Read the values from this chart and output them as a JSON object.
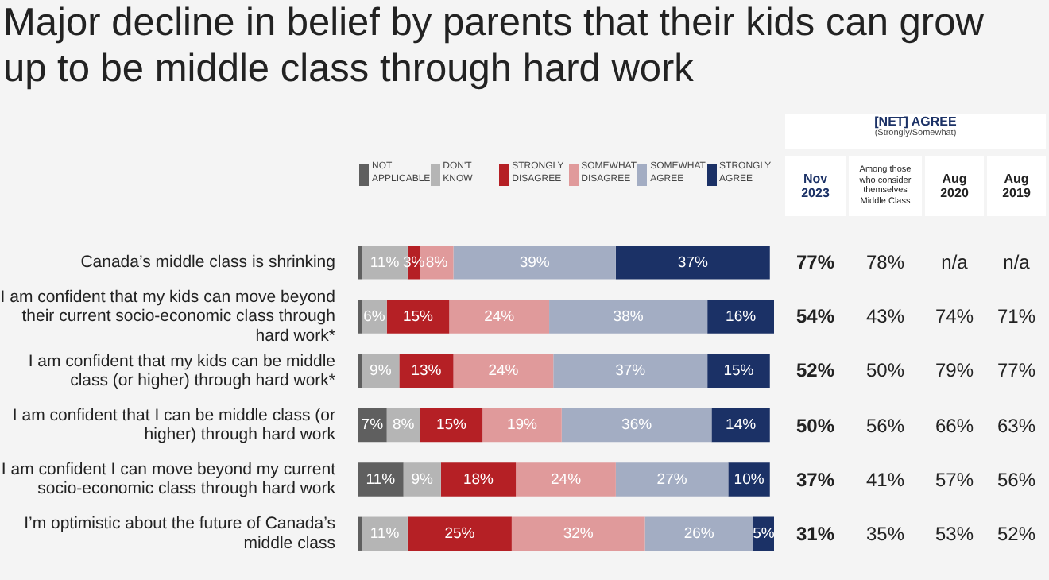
{
  "chart_data": [
    {
      "type": "bar",
      "title": "Major decline in belief by parents that their kids can grow up to be middle class through hard work",
      "orientation": "horizontal",
      "stacked": true,
      "legend": "top",
      "categories": [
        "Canada’s middle class is shrinking",
        "I am confident that my kids can move beyond their current socio-economic class through hard work*",
        "I am confident that my kids can be middle class (or higher) through hard work*",
        "I am confident that I can be middle class (or higher) through hard work",
        "I am confident I can move beyond my current socio-economic class through hard work",
        "I’m optimistic about the future of Canada’s middle class"
      ],
      "series": [
        {
          "name": "NOT APPLICABLE",
          "color": "#5f5f5f",
          "values": [
            1,
            1,
            1,
            7,
            11,
            1
          ],
          "value_labels": [
            null,
            null,
            null,
            "7%",
            "11%",
            null
          ]
        },
        {
          "name": "DON'T KNOW",
          "color": "#b5b5b5",
          "values": [
            11,
            6,
            9,
            8,
            9,
            11
          ],
          "value_labels": [
            "11%",
            "6%",
            "9%",
            "8%",
            "9%",
            "11%"
          ]
        },
        {
          "name": "STRONGLY DISAGREE",
          "color": "#b52025",
          "values": [
            3,
            15,
            13,
            15,
            18,
            25
          ],
          "value_labels": [
            "3%",
            "15%",
            "13%",
            "15%",
            "18%",
            "25%"
          ]
        },
        {
          "name": "SOMEWHAT DISAGREE",
          "color": "#e09a9b",
          "values": [
            8,
            24,
            24,
            19,
            24,
            32
          ],
          "value_labels": [
            "8%",
            "24%",
            "24%",
            "19%",
            "24%",
            "32%"
          ]
        },
        {
          "name": "SOMEWHAT AGREE",
          "color": "#a3adc3",
          "values": [
            39,
            38,
            37,
            36,
            27,
            26
          ],
          "value_labels": [
            "39%",
            "38%",
            "37%",
            "36%",
            "27%",
            "26%"
          ]
        },
        {
          "name": "STRONGLY AGREE",
          "color": "#1b3166",
          "values": [
            37,
            16,
            15,
            14,
            10,
            5
          ],
          "value_labels": [
            "37%",
            "16%",
            "15%",
            "14%",
            "10%",
            "5%"
          ]
        }
      ]
    },
    {
      "type": "other",
      "title": "[NET] AGREE",
      "subtitle": "(Strongly/Somewhat)",
      "categories": [
        "Nov 2023",
        "Among those who consider themselves Middle Class",
        "Aug 2020",
        "Aug 2019"
      ],
      "annotations": [
        "77%",
        "78%",
        "n/a",
        "n/a",
        "54%",
        "43%",
        "74%",
        "71%",
        "52%",
        "50%",
        "79%",
        "77%",
        "50%",
        "56%",
        "66%",
        "63%",
        "37%",
        "41%",
        "57%",
        "56%",
        "31%",
        "35%",
        "53%",
        "52%"
      ]
    }
  ]
}
